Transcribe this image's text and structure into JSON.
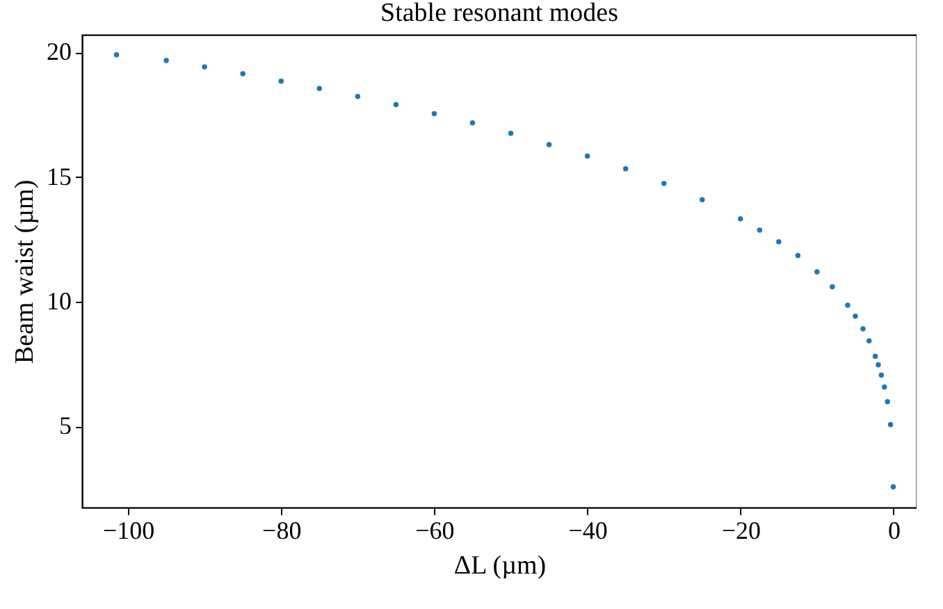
{
  "chart_data": {
    "type": "scatter",
    "title": "Stable resonant modes",
    "xlabel": "ΔL (µm)",
    "ylabel": "Beam waist (µm)",
    "x": [
      -101.5,
      -95,
      -90,
      -85,
      -80,
      -75,
      -70,
      -65,
      -60,
      -55,
      -50,
      -45,
      -40,
      -35,
      -30,
      -25,
      -20,
      -17.5,
      -15,
      -12.5,
      -10,
      -8,
      -6,
      -5,
      -4,
      -3.2,
      -2.4,
      -2.0,
      -1.6,
      -1.2,
      -0.8,
      -0.4,
      -0.05
    ],
    "values": [
      19.9,
      19.67,
      19.41,
      19.14,
      18.84,
      18.55,
      18.23,
      17.9,
      17.54,
      17.17,
      16.75,
      16.3,
      15.84,
      15.33,
      14.74,
      14.09,
      13.32,
      12.87,
      12.4,
      11.85,
      11.2,
      10.6,
      9.86,
      9.42,
      8.91,
      8.43,
      7.81,
      7.47,
      7.06,
      6.58,
      5.99,
      5.07,
      2.58
    ],
    "color": "#1f77b4",
    "marker": "circle",
    "grid": false,
    "xlim": [
      -106,
      3
    ],
    "ylim": [
      1.75,
      20.7
    ],
    "xticks": [
      -100,
      -80,
      -60,
      -40,
      -20,
      0
    ],
    "yticks": [
      5,
      10,
      15,
      20
    ]
  }
}
